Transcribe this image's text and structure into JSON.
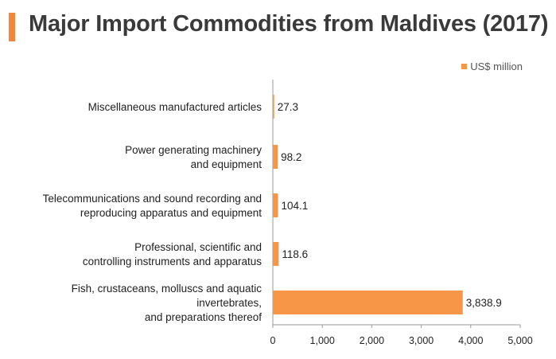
{
  "colors": {
    "accent": "#f0873a",
    "bar": "#f79646",
    "axis": "#9a9a9a"
  },
  "title": "Major Import Commodities from Maldives (2017)",
  "chart_data": {
    "type": "bar",
    "orientation": "horizontal",
    "title": "Major Import Commodities from Maldives (2017)",
    "legend": {
      "position": "top-right",
      "entries": [
        "US$ million"
      ]
    },
    "xlabel": "",
    "ylabel": "",
    "xlim": [
      0,
      5000
    ],
    "x_ticks": [
      "0",
      "1,000",
      "2,000",
      "3,000",
      "4,000",
      "5,000"
    ],
    "grid": false,
    "series": [
      {
        "name": "US$ million",
        "values": [
          27.3,
          98.2,
          104.1,
          118.6,
          3838.9
        ],
        "value_labels": [
          "27.3",
          "98.2",
          "104.1",
          "118.6",
          "3,838.9"
        ]
      }
    ],
    "categories": [
      [
        "Miscellaneous manufactured articles"
      ],
      [
        "Power generating machinery",
        "and equipment"
      ],
      [
        "Telecommunications and sound recording and",
        "reproducing apparatus and equipment"
      ],
      [
        "Professional, scientific and",
        "controlling instruments and apparatus"
      ],
      [
        "Fish, crustaceans, molluscs and aquatic",
        "invertebrates,",
        "and preparations thereof"
      ]
    ]
  }
}
